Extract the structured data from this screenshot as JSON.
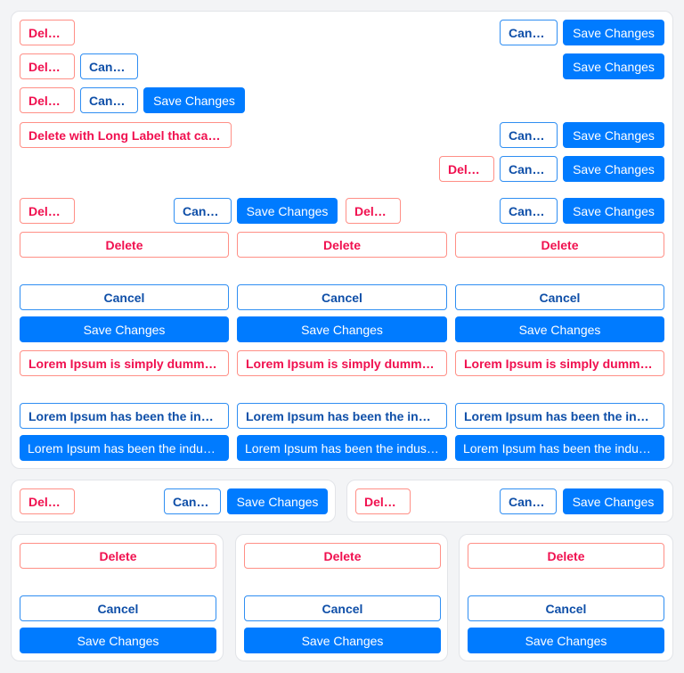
{
  "labels": {
    "delete": "Delete",
    "cancel": "Cancel",
    "save": "Save Changes",
    "delete_long": "Delete with Long Label that can be truncated",
    "lorem_delete": "Lorem Ipsum is simply dummy text of the printing and typesetting industry",
    "lorem_cancel": "Lorem Ipsum has been the industry's standard dummy text",
    "lorem_save": "Lorem Ipsum has been the industry's standard dummy text"
  },
  "colors": {
    "danger": "#f0104f",
    "danger_border": "#ff8f86",
    "secondary": "#0f4fa8",
    "primary": "#007bff"
  }
}
